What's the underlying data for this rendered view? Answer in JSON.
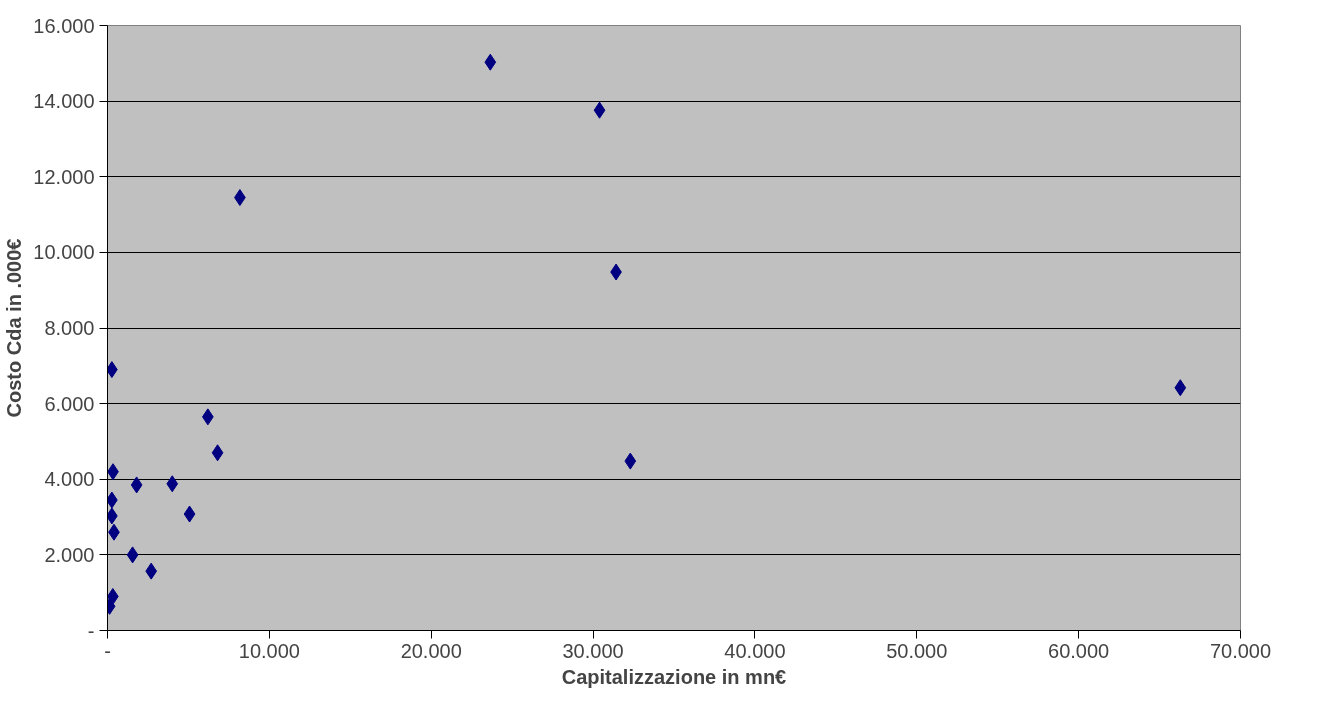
{
  "chart_data": {
    "type": "scatter",
    "xlabel": "Capitalizzazione in mn€",
    "ylabel": "Costo Cda in .000€",
    "x": [
      270,
      6200,
      6800,
      340,
      1800,
      4000,
      270,
      270,
      400,
      5070,
      1550,
      2700,
      330,
      130,
      8180,
      23650,
      30400,
      31420,
      32300,
      66280
    ],
    "series": [
      {
        "color": "#000080",
        "values": [
          6900,
          5650,
          4700,
          4200,
          3850,
          3880,
          3450,
          3030,
          2600,
          3080,
          2000,
          1570,
          900,
          640,
          11450,
          15030,
          13760,
          9480,
          4480,
          6420
        ]
      }
    ],
    "xlim": [
      0,
      70000
    ],
    "ylim": [
      0,
      16000
    ],
    "xticks": [
      {
        "value": 0,
        "label": "-"
      },
      {
        "value": 10000,
        "label": "10.000"
      },
      {
        "value": 20000,
        "label": "20.000"
      },
      {
        "value": 30000,
        "label": "30.000"
      },
      {
        "value": 40000,
        "label": "40.000"
      },
      {
        "value": 50000,
        "label": "50.000"
      },
      {
        "value": 60000,
        "label": "60.000"
      },
      {
        "value": 70000,
        "label": "70.000"
      }
    ],
    "yticks": [
      {
        "value": 0,
        "label": "-"
      },
      {
        "value": 2000,
        "label": "2.000"
      },
      {
        "value": 4000,
        "label": "4.000"
      },
      {
        "value": 6000,
        "label": "6.000"
      },
      {
        "value": 8000,
        "label": "8.000"
      },
      {
        "value": 10000,
        "label": "10.000"
      },
      {
        "value": 12000,
        "label": "12.000"
      },
      {
        "value": 14000,
        "label": "14.000"
      },
      {
        "value": 16000,
        "label": "16.000"
      }
    ],
    "grid": "y",
    "marker": "diamond"
  }
}
